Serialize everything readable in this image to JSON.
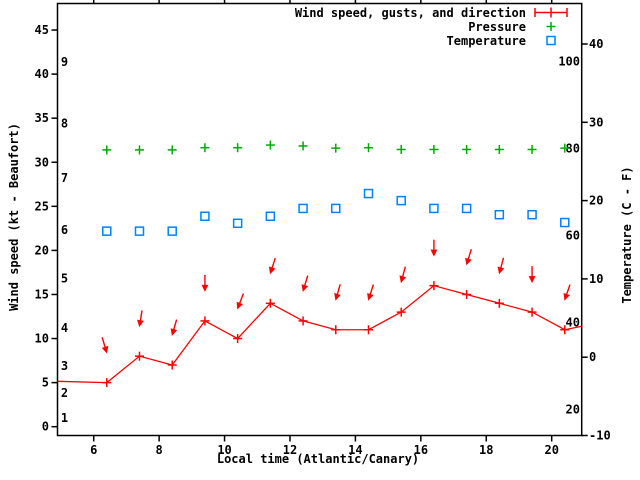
{
  "labels": {
    "ylabel": "Wind speed (kt - Beaufort)",
    "y2label": "Temperature (C - F)",
    "xlabel": "Local time (Atlantic/Canary)"
  },
  "legend": {
    "position": "top-right",
    "items": [
      {
        "label": "Wind speed, gusts, and direction",
        "marker": "errorbar-plus",
        "color": "#ff0000"
      },
      {
        "label": "Pressure",
        "marker": "plus",
        "color": "#00aa00"
      },
      {
        "label": "Temperature",
        "marker": "open-square",
        "color": "#0082ff"
      }
    ]
  },
  "colors": {
    "axis": "#000000",
    "background": "#ffffff",
    "wind": "#ff0000",
    "pressure": "#00aa00",
    "temperature": "#0082ff"
  },
  "chart_data": {
    "type": "line",
    "title": "",
    "xlabel": "Local time (Atlantic/Canary)",
    "ylabel": "Wind speed (kt - Beaufort)",
    "y2label": "Temperature (C - F)",
    "grid": false,
    "legend_position": "top-right",
    "x": [
      6.4,
      7.4,
      8.4,
      9.4,
      10.4,
      11.4,
      12.4,
      13.4,
      14.4,
      15.4,
      16.4,
      17.4,
      18.4,
      19.4,
      20.4
    ],
    "x_ticks": [
      6,
      8,
      10,
      12,
      14,
      16,
      18,
      20
    ],
    "xlim": [
      4.89,
      20.92
    ],
    "y_left": {
      "unit": "kt",
      "ticks": [
        0,
        5,
        10,
        15,
        20,
        25,
        30,
        35,
        40,
        45
      ],
      "lim": [
        -1,
        48
      ]
    },
    "y_right": {
      "unit": "C",
      "ticks": [
        -10,
        0,
        10,
        20,
        30,
        40
      ],
      "lim": [
        -10,
        45.2
      ]
    },
    "beaufort_labels": [
      {
        "label": "1",
        "kt": 1.0
      },
      {
        "label": "2",
        "kt": 3.8
      },
      {
        "label": "3",
        "kt": 6.9
      },
      {
        "label": "4",
        "kt": 11.2
      },
      {
        "label": "5",
        "kt": 16.8
      },
      {
        "label": "6",
        "kt": 22.3
      },
      {
        "label": "7",
        "kt": 28.2
      },
      {
        "label": "8",
        "kt": 34.4
      },
      {
        "label": "9",
        "kt": 41.4
      }
    ],
    "fahrenheit_labels": [
      20,
      40,
      60,
      80,
      100
    ],
    "series": [
      {
        "name": "Wind speed, gusts, and direction",
        "type": "line",
        "marker": "plus",
        "color": "#ff0000",
        "axis": "left",
        "values_kt": [
          5,
          8,
          7,
          12,
          10,
          14,
          12,
          11,
          11,
          13,
          16,
          15,
          14,
          13,
          11
        ],
        "edge_left": {
          "x": 4.89,
          "kt": 5.15
        },
        "edge_right": {
          "x": 20.92,
          "kt": 11.4
        },
        "gust_arrows": {
          "offset_kt": 3.4,
          "tilt_deg": [
            -17,
            9,
            16,
            0,
            21,
            18,
            17,
            16,
            18,
            15,
            0,
            17,
            15,
            0,
            19
          ]
        }
      },
      {
        "name": "Pressure",
        "type": "scatter",
        "marker": "plus",
        "color": "#00aa00",
        "axis": "left-scale-hidden",
        "values_kt_scale": [
          31.4,
          31.4,
          31.4,
          31.65,
          31.65,
          31.95,
          31.85,
          31.6,
          31.65,
          31.45,
          31.45,
          31.45,
          31.45,
          31.45,
          31.6
        ]
      },
      {
        "name": "Temperature",
        "type": "scatter",
        "marker": "open-square",
        "color": "#0082ff",
        "axis": "right",
        "values_c": [
          16.1,
          16.1,
          16.1,
          18.0,
          17.1,
          18.0,
          19.0,
          19.0,
          20.9,
          20.0,
          19.0,
          19.0,
          18.2,
          18.2,
          17.2
        ]
      }
    ]
  }
}
